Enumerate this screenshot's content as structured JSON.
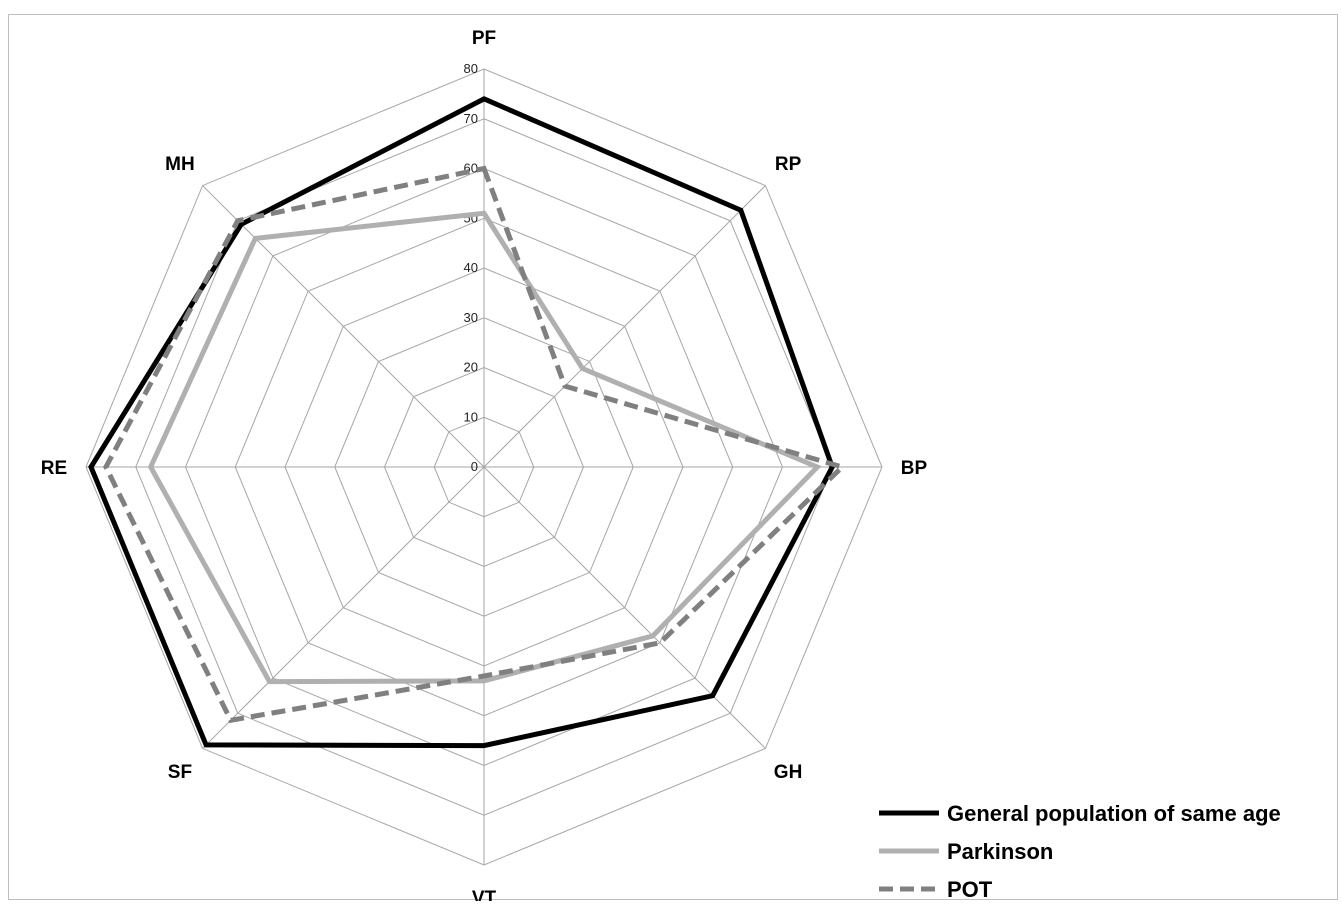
{
  "chart_data": {
    "type": "radar",
    "axes": [
      "PF",
      "RP",
      "BP",
      "GH",
      "VT",
      "SF",
      "RE",
      "MH"
    ],
    "r_ticks": [
      "0",
      "10",
      "20",
      "30",
      "40",
      "50",
      "60",
      "70",
      "80"
    ],
    "r_max": 80,
    "grid": true,
    "legend_position": "bottom-right",
    "series": [
      {
        "name": "General population of same age",
        "color": "#000000",
        "style": "solid",
        "values": [
          74,
          73,
          70,
          65,
          56,
          79,
          79,
          69
        ]
      },
      {
        "name": "Parkinson",
        "color": "#b0b0b0",
        "style": "solid",
        "values": [
          51,
          28,
          67,
          48,
          43,
          61,
          67,
          65
        ]
      },
      {
        "name": "POT",
        "color": "#808080",
        "style": "dashed",
        "values": [
          60,
          23,
          72,
          50,
          42,
          72,
          76,
          70
        ]
      }
    ]
  }
}
